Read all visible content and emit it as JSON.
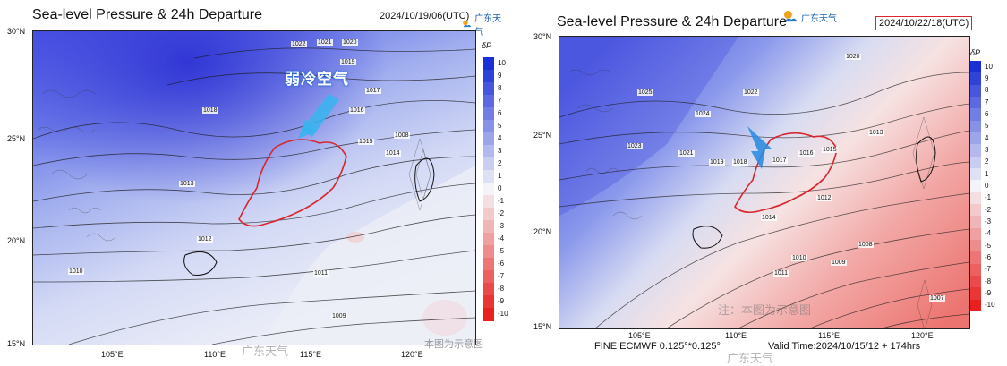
{
  "left": {
    "title": "Sea-level Pressure & 24h Departure",
    "timestamp": "2024/10/19/06(UTC)",
    "logo_text": "广东天气",
    "annotation": "弱冷空气",
    "lat_labels": [
      "30°N",
      "25°N",
      "20°N",
      "15°N"
    ],
    "lon_labels": [
      "105°E",
      "110°E",
      "115°E",
      "120°E"
    ],
    "isobar_labels": [
      "1022",
      "1021",
      "1020",
      "1019",
      "1018",
      "1017",
      "1016",
      "1015",
      "1014",
      "1013",
      "1012",
      "1011",
      "1010",
      "1009",
      "1008"
    ],
    "colorbar_title": "δP",
    "colorbar_ticks": [
      "10",
      "9",
      "8",
      "7",
      "6",
      "5",
      "4",
      "3",
      "2",
      "1",
      "0",
      "-1",
      "-2",
      "-3",
      "-4",
      "-5",
      "-6",
      "-7",
      "-8",
      "-9",
      "-10"
    ],
    "watermark": "本图为示意图",
    "weibo_watermark": "广东天气"
  },
  "right": {
    "title": "Sea-level Pressure & 24h Departure",
    "timestamp": "2024/10/22/18(UTC)",
    "logo_text": "广东天气",
    "lat_labels": [
      "30°N",
      "25°N",
      "20°N",
      "15°N"
    ],
    "lon_labels": [
      "105°E",
      "110°E",
      "115°E",
      "120°E"
    ],
    "isobar_labels": [
      "1025",
      "1024",
      "1023",
      "1022",
      "1021",
      "1020",
      "1019",
      "1018",
      "1017",
      "1016",
      "1015",
      "1014",
      "1013",
      "1012",
      "1011",
      "1010",
      "1009",
      "1008",
      "1007"
    ],
    "colorbar_title": "δP",
    "colorbar_ticks": [
      "10",
      "9",
      "8",
      "7",
      "6",
      "5",
      "4",
      "3",
      "2",
      "1",
      "0",
      "-1",
      "-2",
      "-3",
      "-4",
      "-5",
      "-6",
      "-7",
      "-8",
      "-9",
      "-10"
    ],
    "footer_left": "FINE ECMWF 0.125°*0.125°",
    "footer_right": "Valid Time:2024/10/15/12 + 174hrs",
    "watermark": "注：本图为示意图",
    "weibo_watermark": "广东天气"
  },
  "colors": {
    "high_departure": "#1a2fd6",
    "neutral": "#f4f4f8",
    "low_departure": "#e8211e",
    "coastline_guangdong": "#d8272f"
  }
}
